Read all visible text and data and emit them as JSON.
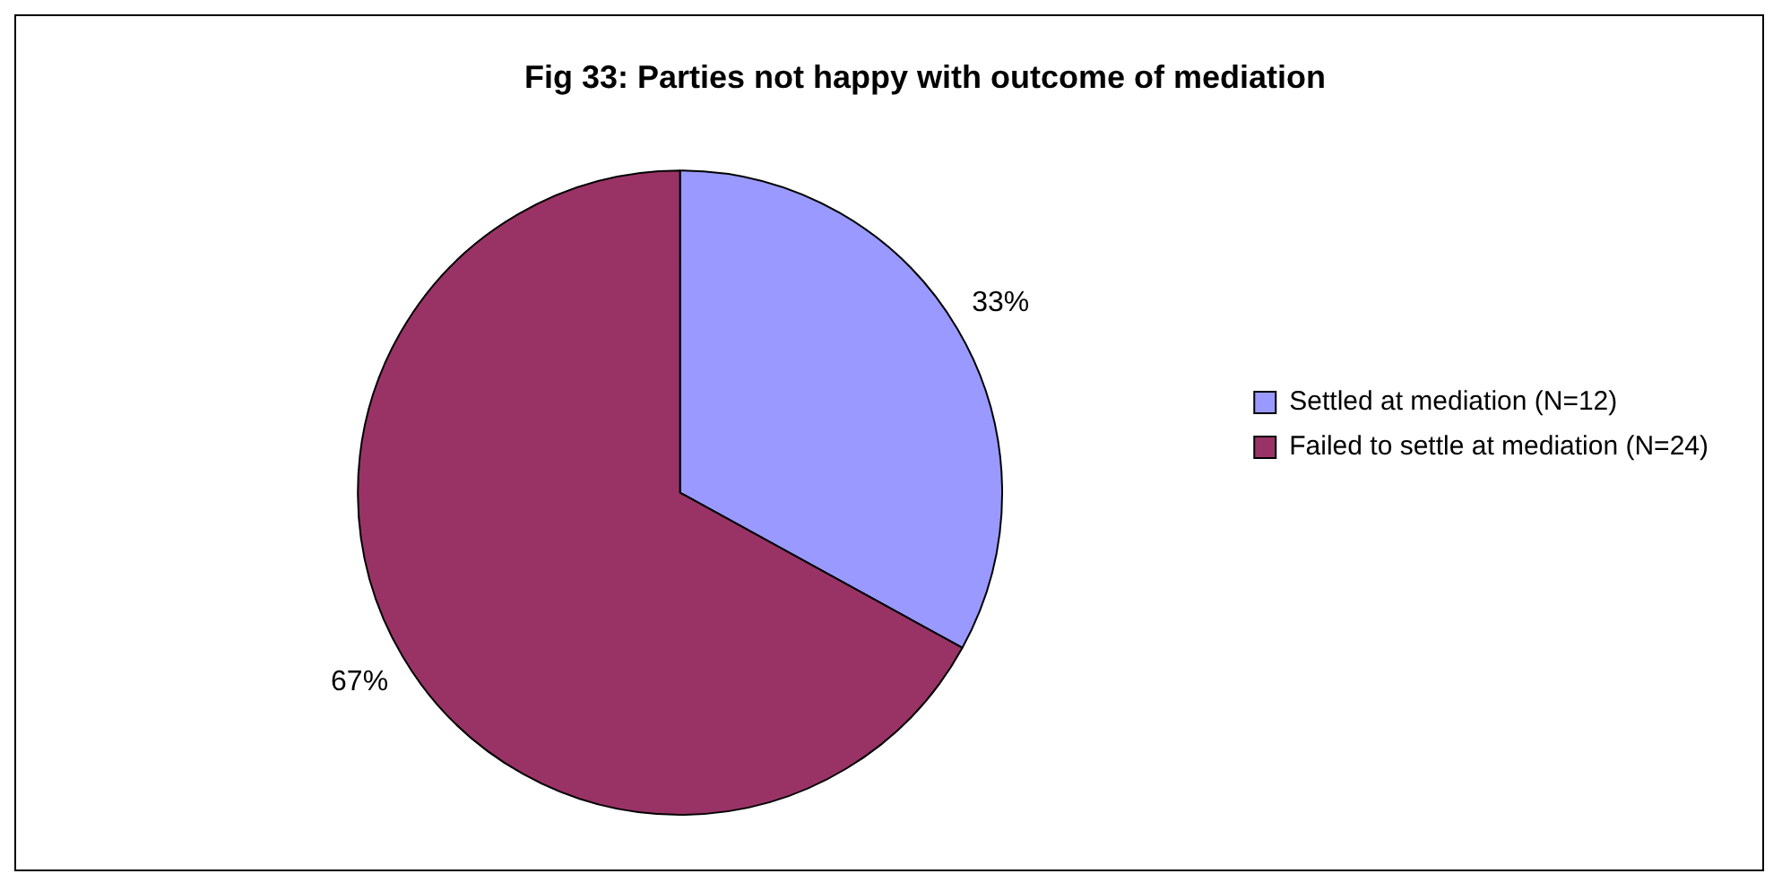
{
  "chart_data": {
    "type": "pie",
    "title": "Fig 33: Parties not happy with outcome of mediation",
    "categories": [
      "Settled at mediation (N=12)",
      "Failed to settle at mediation (N=24)"
    ],
    "values": [
      33,
      67
    ],
    "value_labels": [
      "33%",
      "67%"
    ],
    "colors": [
      "#9999ff",
      "#993366"
    ],
    "legend": "right"
  }
}
